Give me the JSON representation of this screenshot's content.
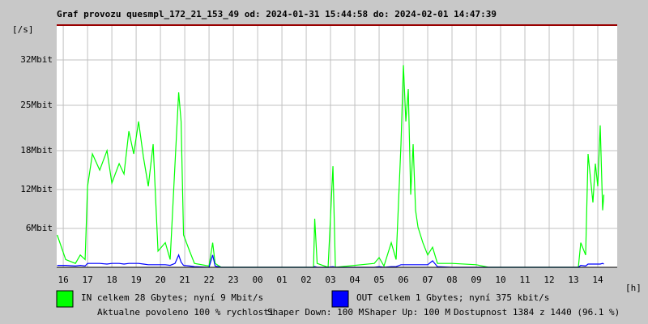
{
  "chart_data": {
    "type": "line",
    "title": "Graf provozu quesmpl_172_21_153_49 od: 2024-01-31 15:44:58 do: 2024-02-01 14:47:39",
    "y_label": "[/s]",
    "x_label": "[h]",
    "xlim": [
      15.73,
      38.8
    ],
    "ylim": [
      0,
      37.5
    ],
    "xticks": [
      16,
      17,
      18,
      19,
      20,
      21,
      22,
      23,
      {
        "value": 24,
        "label": "00"
      },
      {
        "value": 25,
        "label": "01"
      },
      {
        "value": 26,
        "label": "02"
      },
      {
        "value": 27,
        "label": "03"
      },
      {
        "value": 28,
        "label": "04"
      },
      {
        "value": 29,
        "label": "05"
      },
      {
        "value": 30,
        "label": "06"
      },
      {
        "value": 31,
        "label": "07"
      },
      {
        "value": 32,
        "label": "08"
      },
      {
        "value": 33,
        "label": "09"
      },
      {
        "value": 34,
        "label": "10"
      },
      {
        "value": 35,
        "label": "11"
      },
      {
        "value": 36,
        "label": "12"
      },
      {
        "value": 37,
        "label": "13"
      },
      {
        "value": 38,
        "label": "14"
      }
    ],
    "yticks": [
      {
        "value": 6,
        "label": "6Mbit"
      },
      {
        "value": 12,
        "label": "12Mbit"
      },
      {
        "value": 18,
        "label": "18Mbit"
      },
      {
        "value": 25,
        "label": "25Mbit"
      },
      {
        "value": 32,
        "label": "32Mbit"
      }
    ],
    "grid": true,
    "x": [
      15.75,
      16.1,
      16.5,
      16.7,
      16.9,
      17.0,
      17.2,
      17.5,
      17.8,
      18.0,
      18.3,
      18.5,
      18.7,
      18.9,
      19.1,
      19.3,
      19.5,
      19.7,
      19.9,
      20.2,
      20.4,
      20.6,
      20.75,
      20.85,
      20.95,
      21.2,
      21.4,
      22.0,
      22.15,
      22.25,
      22.5,
      26.3,
      26.35,
      26.45,
      26.9,
      27.1,
      27.2,
      28.8,
      29.0,
      29.2,
      29.5,
      29.7,
      29.9,
      30.0,
      30.1,
      30.2,
      30.3,
      30.4,
      30.5,
      30.6,
      30.8,
      31.0,
      31.2,
      31.4,
      32.0,
      33.0,
      33.5,
      37.2,
      37.3,
      37.5,
      37.6,
      37.8,
      37.9,
      38.0,
      38.1,
      38.2,
      38.25
    ],
    "series": [
      {
        "name": "IN celkem 28 Gbytes; nyní 9 Mbit/s",
        "color": "#00ff00",
        "values": [
          5,
          1.2,
          0.6,
          1.9,
          1.2,
          12.5,
          17.5,
          15,
          18,
          13,
          16,
          14.4,
          21,
          17.5,
          22.5,
          17,
          12.5,
          19,
          2.5,
          3.8,
          1.2,
          16,
          27,
          22.5,
          5,
          2.5,
          0.6,
          0.2,
          3.8,
          0.6,
          0,
          0,
          7.5,
          0.6,
          0,
          15.6,
          0,
          0.6,
          1.5,
          0.2,
          3.8,
          1.2,
          19,
          31.2,
          22.5,
          27.5,
          11.2,
          19,
          8.8,
          6.2,
          3.8,
          1.9,
          3.1,
          0.6,
          0.6,
          0.4,
          0,
          0,
          3.8,
          1.9,
          17.5,
          10,
          16,
          12.5,
          21.9,
          8.8,
          11.2
        ]
      },
      {
        "name": "OUT celkem 1 Gbytes; nyní 375 kbit/s",
        "color": "#0000ff",
        "values": [
          0.3,
          0.3,
          0.2,
          0.3,
          0.2,
          0.6,
          0.6,
          0.6,
          0.5,
          0.6,
          0.6,
          0.5,
          0.6,
          0.6,
          0.6,
          0.5,
          0.4,
          0.4,
          0.4,
          0.4,
          0.3,
          0.6,
          1.9,
          0.8,
          0.3,
          0.2,
          0.1,
          0,
          1.9,
          0.2,
          0,
          0,
          0.1,
          0,
          0,
          0.1,
          0,
          0,
          0.1,
          0,
          0.1,
          0.1,
          0.4,
          0.4,
          0.4,
          0.4,
          0.4,
          0.4,
          0.4,
          0.4,
          0.4,
          0.4,
          1,
          0.1,
          0,
          0,
          0,
          0,
          0.3,
          0.2,
          0.5,
          0.5,
          0.5,
          0.5,
          0.5,
          0.6,
          0.5
        ]
      }
    ],
    "annotations": [
      {
        "text": "Aktualne povoleno 100 % rychlosti",
        "color": "#dd0000"
      },
      {
        "text": "Shaper Down: 100 M",
        "color": "#000000"
      },
      {
        "text": "Shaper Up: 100 M",
        "color": "#8800aa"
      },
      {
        "text": "Dostupnost 1384 z 1440 (96.1 %)",
        "color": "#000000"
      }
    ]
  }
}
